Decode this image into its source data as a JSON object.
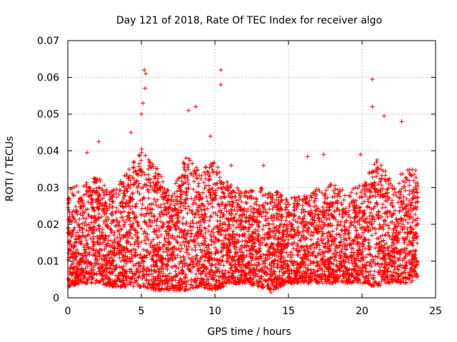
{
  "chart_data": {
    "type": "scatter",
    "title": "Day 121 of 2018, Rate Of TEC Index for receiver algo",
    "xlabel": "GPS time / hours",
    "ylabel": "ROTI / TECUs",
    "xlim": [
      0,
      25
    ],
    "ylim": [
      0,
      0.07
    ],
    "xticks": [
      0,
      5,
      10,
      15,
      20,
      25
    ],
    "yticks": [
      0,
      0.01,
      0.02,
      0.03,
      0.04,
      0.05,
      0.06,
      0.07
    ],
    "xtick_labels": [
      "0",
      "5",
      "10",
      "15",
      "20",
      "25"
    ],
    "ytick_labels": [
      "0",
      "0.01",
      "0.02",
      "0.03",
      "0.04",
      "0.05",
      "0.06",
      "0.07"
    ],
    "grid": true,
    "marker": "+",
    "marker_color": "#ff0000",
    "data_span_hours": [
      0,
      23.8
    ],
    "envelope": {
      "description": "dense band of points; per-hour typical min, max",
      "hours": [
        0,
        1,
        2,
        3,
        4,
        5,
        6,
        7,
        8,
        9,
        10,
        11,
        12,
        13,
        14,
        15,
        16,
        17,
        18,
        19,
        20,
        21,
        22,
        23
      ],
      "typical_max": [
        0.03,
        0.031,
        0.033,
        0.029,
        0.034,
        0.041,
        0.036,
        0.028,
        0.039,
        0.035,
        0.037,
        0.031,
        0.029,
        0.03,
        0.03,
        0.027,
        0.028,
        0.03,
        0.031,
        0.029,
        0.031,
        0.038,
        0.032,
        0.035
      ],
      "typical_min": [
        0.003,
        0.004,
        0.004,
        0.003,
        0.003,
        0.003,
        0.002,
        0.002,
        0.002,
        0.003,
        0.002,
        0.004,
        0.004,
        0.003,
        0.002,
        0.004,
        0.004,
        0.004,
        0.004,
        0.004,
        0.004,
        0.003,
        0.004,
        0.004
      ]
    },
    "outliers": [
      {
        "x": 5.2,
        "y": 0.062
      },
      {
        "x": 5.3,
        "y": 0.061
      },
      {
        "x": 5.25,
        "y": 0.057
      },
      {
        "x": 5.1,
        "y": 0.053
      },
      {
        "x": 5.0,
        "y": 0.05
      },
      {
        "x": 10.4,
        "y": 0.062
      },
      {
        "x": 10.4,
        "y": 0.058
      },
      {
        "x": 20.7,
        "y": 0.0595
      },
      {
        "x": 20.7,
        "y": 0.052
      },
      {
        "x": 21.5,
        "y": 0.0495
      },
      {
        "x": 22.7,
        "y": 0.048
      },
      {
        "x": 8.2,
        "y": 0.051
      },
      {
        "x": 8.7,
        "y": 0.052
      },
      {
        "x": 4.3,
        "y": 0.045
      },
      {
        "x": 1.3,
        "y": 0.0395
      },
      {
        "x": 2.1,
        "y": 0.0425
      },
      {
        "x": 16.3,
        "y": 0.0385
      },
      {
        "x": 17.4,
        "y": 0.039
      },
      {
        "x": 19.9,
        "y": 0.039
      },
      {
        "x": 13.3,
        "y": 0.036
      },
      {
        "x": 9.7,
        "y": 0.044
      },
      {
        "x": 11.1,
        "y": 0.036
      },
      {
        "x": 13.8,
        "y": 0.0015
      }
    ]
  }
}
